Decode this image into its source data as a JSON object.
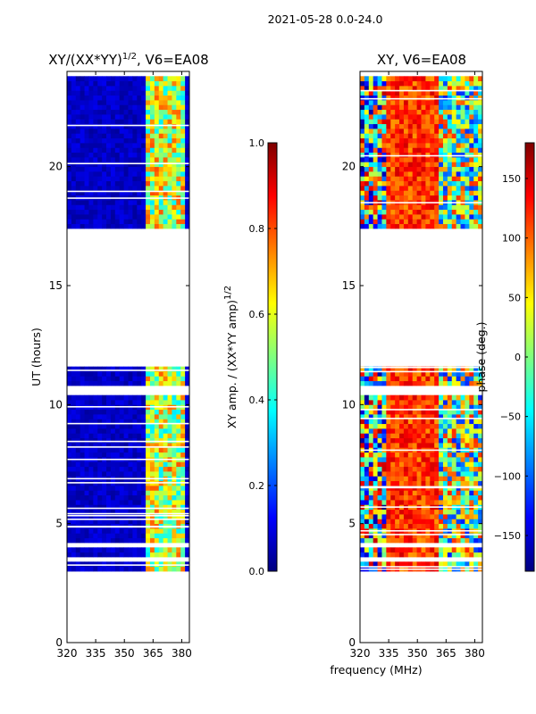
{
  "suptitle": "2021-05-28 0.0-24.0",
  "colors": {
    "jet": [
      "#00007f",
      "#0000ff",
      "#007fff",
      "#00ffff",
      "#7fff7f",
      "#ffff00",
      "#ff7f00",
      "#ff0000",
      "#7f0000"
    ],
    "gap": "#ffffff",
    "axis": "#000000"
  },
  "shared_xlabel": "frequency (MHz)",
  "chart_data": [
    {
      "type": "heatmap",
      "title_main": "XY/(XX*YY)",
      "title_sup": "1/2",
      "title_tail": ", V6=EA08",
      "xlabel": "frequency (MHz)",
      "ylabel": "UT (hours)",
      "xlim": [
        320,
        384
      ],
      "ylim": [
        0,
        24
      ],
      "xticks": [
        320,
        335,
        350,
        365,
        380
      ],
      "yticks": [
        0,
        5,
        10,
        15,
        20
      ],
      "data_time_range_hours": [
        3.0,
        23.8
      ],
      "gap_hours": [
        [
          11.6,
          17.3
        ],
        [
          10.3,
          10.8
        ],
        [
          3.9,
          4.2
        ],
        [
          3.3,
          3.5
        ]
      ],
      "colorbar": {
        "label_main": "XY amp. / (XX*YY amp)",
        "label_sup": "1/2",
        "range": [
          0.0,
          1.0
        ],
        "ticks": [
          "0.0",
          "0.2",
          "0.4",
          "0.6",
          "0.8",
          "1.0"
        ],
        "cmap": "jet"
      }
    },
    {
      "type": "heatmap",
      "title": "XY, V6=EA08",
      "xlabel": "frequency (MHz)",
      "ylabel": "",
      "xlim": [
        320,
        384
      ],
      "ylim": [
        0,
        24
      ],
      "xticks": [
        320,
        335,
        350,
        365,
        380
      ],
      "yticks": [
        0,
        5,
        10,
        15,
        20
      ],
      "data_time_range_hours": [
        3.0,
        23.8
      ],
      "gap_hours": [
        [
          11.6,
          17.3
        ],
        [
          10.3,
          10.8
        ],
        [
          3.9,
          4.2
        ],
        [
          3.3,
          3.5
        ]
      ],
      "colorbar": {
        "label": "phase (deg.)",
        "range": [
          -180,
          180
        ],
        "ticks": [
          "−150",
          "−100",
          "−50",
          "0",
          "50",
          "100",
          "150"
        ],
        "tick_values": [
          -150,
          -100,
          -50,
          0,
          50,
          100,
          150
        ],
        "cmap": "jet"
      }
    }
  ]
}
